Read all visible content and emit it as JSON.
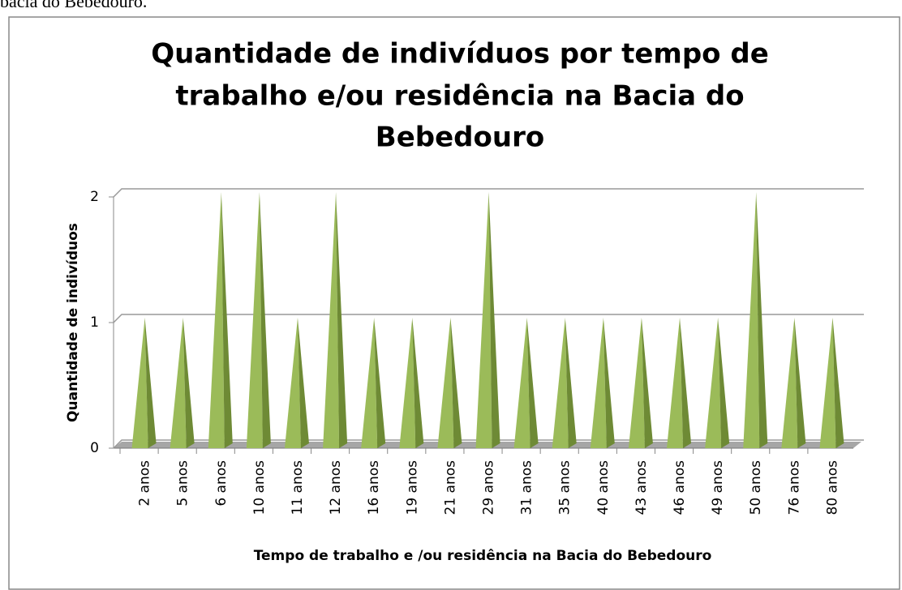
{
  "caption": "bacia do Bebedouro.",
  "chart_data": {
    "type": "pyramid",
    "title": [
      "Quantidade de indivíduos por tempo de",
      "trabalho e/ou residência na Bacia do",
      "Bebedouro"
    ],
    "x_label": "Tempo de trabalho  e /ou residência na Bacia do Bebedouro",
    "y_label": "Quantidade de indivíduos",
    "categories": [
      "2 anos",
      "5 anos",
      "6 anos",
      "10 anos",
      "11 anos",
      "12 anos",
      "16 anos",
      "19 anos",
      "21 anos",
      "29 anos",
      "31 anos",
      "35 anos",
      "40 anos",
      "43 anos",
      "46 anos",
      "49 anos",
      "50 anos",
      "76 anos",
      "80 anos"
    ],
    "values": [
      1,
      1,
      2,
      2,
      1,
      2,
      1,
      1,
      1,
      2,
      1,
      1,
      1,
      1,
      1,
      1,
      2,
      1,
      1
    ],
    "color": "#9bbb59",
    "ylim": [
      0,
      2
    ],
    "yticks": [
      0,
      1,
      2
    ],
    "grid": true
  }
}
